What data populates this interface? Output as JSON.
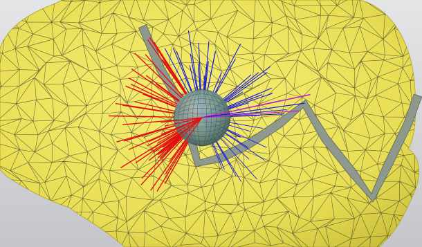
{
  "scene": {
    "background_color": "#d9dadd",
    "floor_color": "#c7c9cc",
    "mesh_color": "#ece35a",
    "mesh_shadow_color": "#c9bf3a",
    "wire_color": "#3a3a2a",
    "strip_color": "#8f988d",
    "sphere_color": "#6f8f8c",
    "ray_colors": {
      "red": "#e01010",
      "blue": "#1a1ad8",
      "magenta": "#c020c0"
    }
  }
}
